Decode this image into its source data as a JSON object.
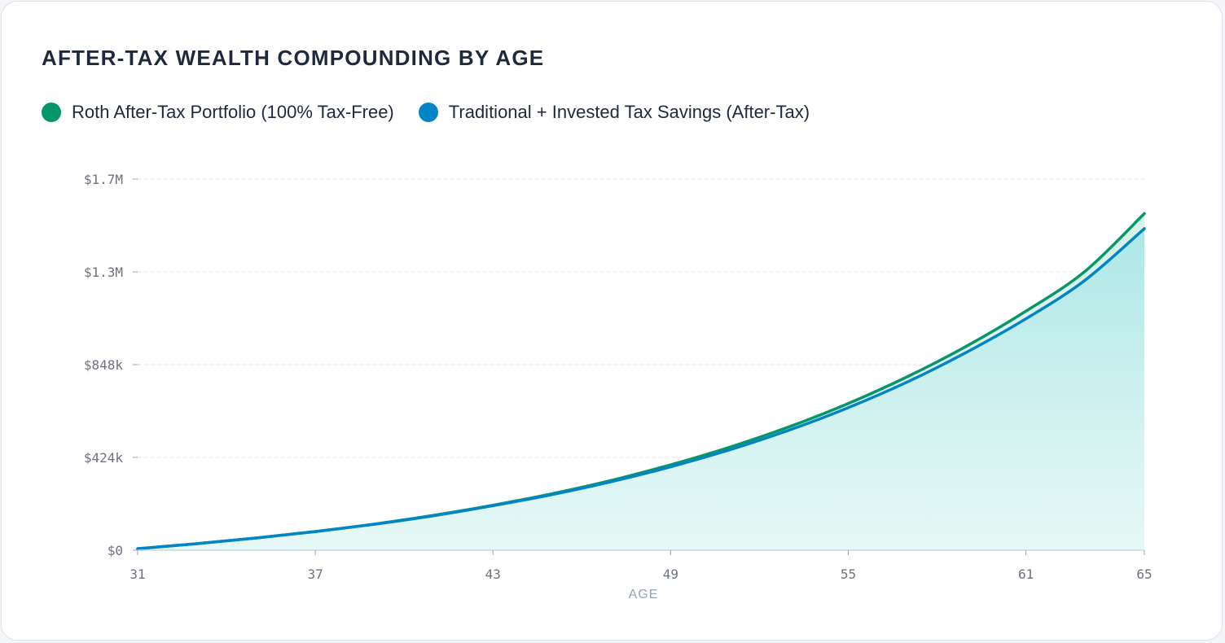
{
  "chart_data": {
    "type": "line",
    "title": "AFTER-TAX WEALTH COMPOUNDING BY AGE",
    "xlabel": "AGE",
    "ylabel": "",
    "xlim": [
      31,
      65
    ],
    "ylim": [
      0,
      1700000
    ],
    "x_ticks": [
      "31",
      "37",
      "43",
      "49",
      "55",
      "61",
      "65"
    ],
    "y_ticks": [
      "$0",
      "$424k",
      "$848k",
      "$1.3M",
      "$1.7M"
    ],
    "grid": true,
    "legend_position": "top-left",
    "x": [
      31,
      33,
      35,
      37,
      39,
      41,
      43,
      45,
      47,
      49,
      51,
      53,
      55,
      57,
      59,
      61,
      63,
      65
    ],
    "series": [
      {
        "name": "Roth After-Tax Portfolio (100% Tax-Free)",
        "color": "#059669",
        "values": [
          7000,
          30000,
          56000,
          86000,
          120000,
          160000,
          206000,
          259000,
          320000,
          391000,
          472000,
          565000,
          672000,
          795000,
          935000,
          1095000,
          1278000,
          1542000
        ]
      },
      {
        "name": "Traditional + Invested Tax Savings (After-Tax)",
        "color": "#0284c7",
        "values": [
          7000,
          30000,
          56000,
          85000,
          119000,
          158000,
          204000,
          255000,
          314000,
          382000,
          460000,
          550000,
          653000,
          771000,
          907000,
          1060000,
          1237000,
          1473000
        ]
      }
    ]
  }
}
